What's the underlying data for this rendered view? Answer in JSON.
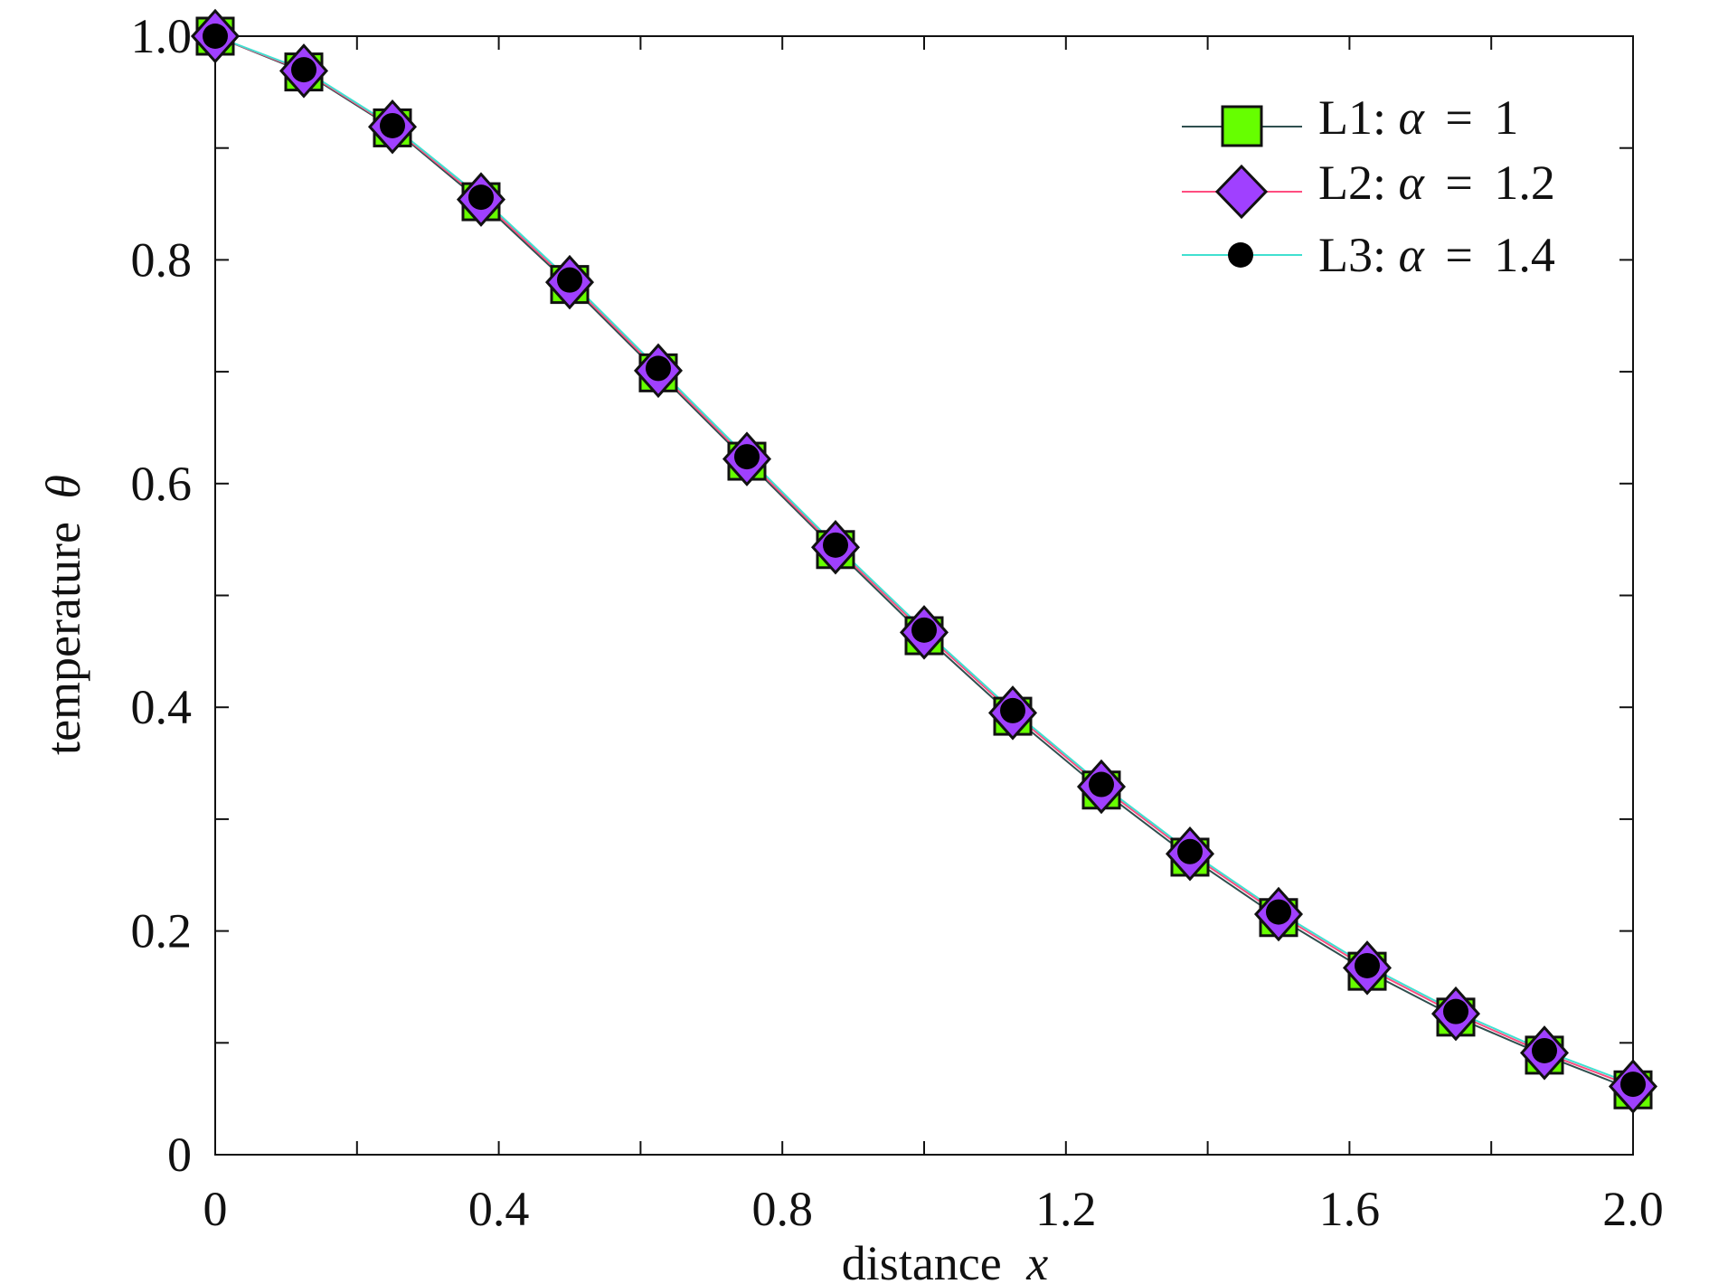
{
  "chart_data": {
    "type": "line",
    "title": "",
    "xlabel": {
      "text": "distance",
      "symbol": "x"
    },
    "ylabel": {
      "text": "temperature",
      "symbol": "θ"
    },
    "xlim": [
      0,
      2.0
    ],
    "ylim": [
      0,
      1.0
    ],
    "x_ticks": [
      0,
      0.2,
      0.4,
      0.6,
      0.8,
      1.0,
      1.2,
      1.4,
      1.6,
      1.8,
      2.0
    ],
    "x_tick_labels": [
      {
        "value": 0,
        "label": "0"
      },
      {
        "value": 0.4,
        "label": "0.4"
      },
      {
        "value": 0.8,
        "label": "0.8"
      },
      {
        "value": 1.2,
        "label": "1.2"
      },
      {
        "value": 1.6,
        "label": "1.6"
      },
      {
        "value": 2.0,
        "label": "2.0"
      }
    ],
    "y_ticks": [
      0,
      0.1,
      0.2,
      0.3,
      0.4,
      0.5,
      0.6,
      0.7,
      0.8,
      0.9,
      1.0
    ],
    "y_tick_labels": [
      {
        "value": 0,
        "label": "0"
      },
      {
        "value": 0.2,
        "label": "0.2"
      },
      {
        "value": 0.4,
        "label": "0.4"
      },
      {
        "value": 0.6,
        "label": "0.6"
      },
      {
        "value": 0.8,
        "label": "0.8"
      },
      {
        "value": 1.0,
        "label": "1.0"
      }
    ],
    "grid": false,
    "legend_position": "top-right",
    "x": [
      0,
      0.125,
      0.25,
      0.375,
      0.5,
      0.625,
      0.75,
      0.875,
      1.0,
      1.125,
      1.25,
      1.375,
      1.5,
      1.625,
      1.75,
      1.875,
      2.0
    ],
    "series": [
      {
        "name": "L1: α = 1",
        "label_prefix": "L1: ",
        "symbol": "α",
        "value_text": "1",
        "marker": "square",
        "marker_color": "#66ff00",
        "line_color": "#2f4f4f",
        "values": [
          1.0,
          0.968,
          0.918,
          0.852,
          0.778,
          0.699,
          0.62,
          0.541,
          0.464,
          0.392,
          0.326,
          0.266,
          0.212,
          0.164,
          0.123,
          0.089,
          0.058
        ]
      },
      {
        "name": "L2: α = 1.2",
        "label_prefix": "L2: ",
        "symbol": "α",
        "value_text": "1.2",
        "marker": "diamond",
        "marker_color": "#a040ff",
        "line_color": "#ff4d80",
        "values": [
          1.0,
          0.969,
          0.919,
          0.854,
          0.78,
          0.701,
          0.622,
          0.543,
          0.467,
          0.395,
          0.329,
          0.269,
          0.215,
          0.167,
          0.126,
          0.091,
          0.061
        ]
      },
      {
        "name": "L3: α = 1.4",
        "label_prefix": "L3: ",
        "symbol": "α",
        "value_text": "1.4",
        "marker": "circle",
        "marker_color": "#000000",
        "line_color": "#40e0d0",
        "values": [
          1.0,
          0.97,
          0.92,
          0.856,
          0.782,
          0.703,
          0.624,
          0.545,
          0.469,
          0.397,
          0.331,
          0.271,
          0.217,
          0.169,
          0.128,
          0.093,
          0.063
        ]
      }
    ]
  }
}
